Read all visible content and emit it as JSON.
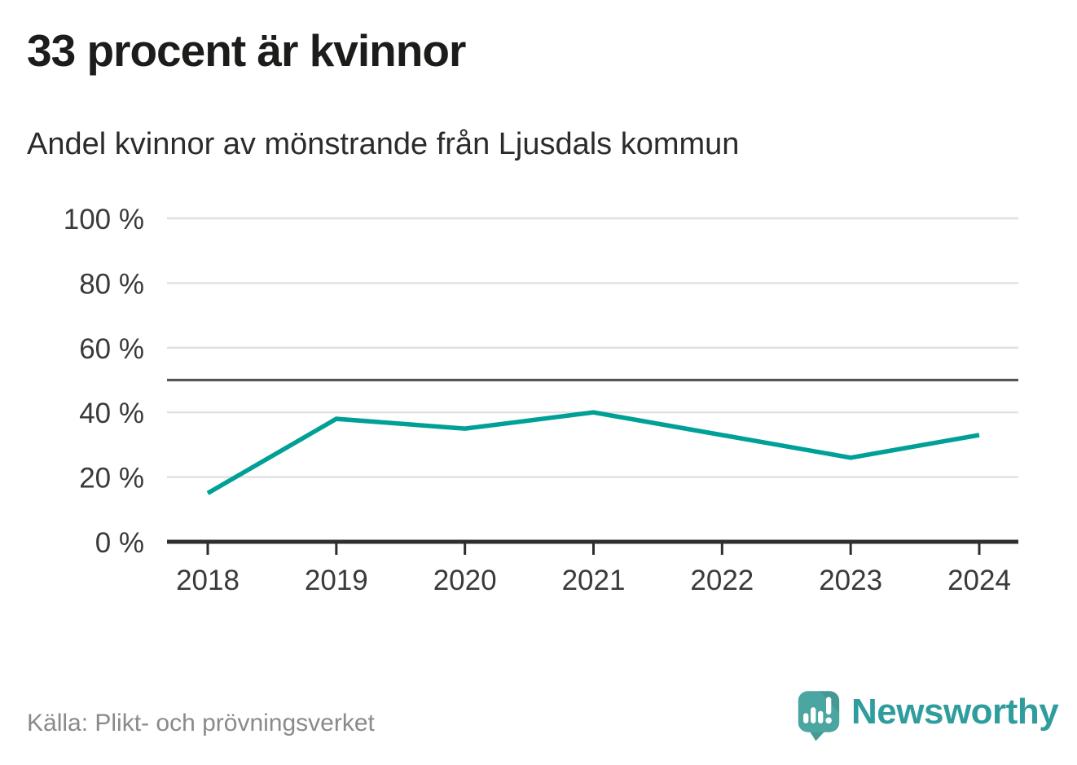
{
  "header": {
    "title": "33 procent är kvinnor",
    "subtitle": "Andel kvinnor av mönstrande från Ljusdals kommun"
  },
  "footer": {
    "source": "Källa: Plikt- och prövningsverket",
    "brand": "Newsworthy"
  },
  "colors": {
    "line": "#00a096",
    "grid": "#e0e0e0",
    "reference_line": "#55565b",
    "axis": "#2e2e2e",
    "tick_text": "#3a3a3a",
    "title_text": "#1c1c1b",
    "subtitle_text": "#2b2b2b",
    "source_text": "#8a8a8a",
    "brand_text": "#2f9d9d",
    "logo_mark": "#4ba5a0",
    "logo_tail": "#459a94"
  },
  "chart_data": {
    "type": "line",
    "title": "33 procent är kvinnor",
    "subtitle": "Andel kvinnor av mönstrande från Ljusdals kommun",
    "x": [
      "2018",
      "2019",
      "2020",
      "2021",
      "2022",
      "2023",
      "2024"
    ],
    "series": [
      {
        "name": "Andel kvinnor av mönstrande",
        "color": "#00a096",
        "values": [
          15,
          38,
          35,
          40,
          33,
          26,
          33
        ]
      }
    ],
    "xlabel": "",
    "ylabel": "",
    "ylim": [
      0,
      100
    ],
    "yticks": [
      0,
      20,
      40,
      60,
      80,
      100
    ],
    "ytick_labels": [
      "0 %",
      "20 %",
      "40 %",
      "60 %",
      "80 %",
      "100 %"
    ],
    "reference_line": 50,
    "grid": true,
    "legend": false
  }
}
